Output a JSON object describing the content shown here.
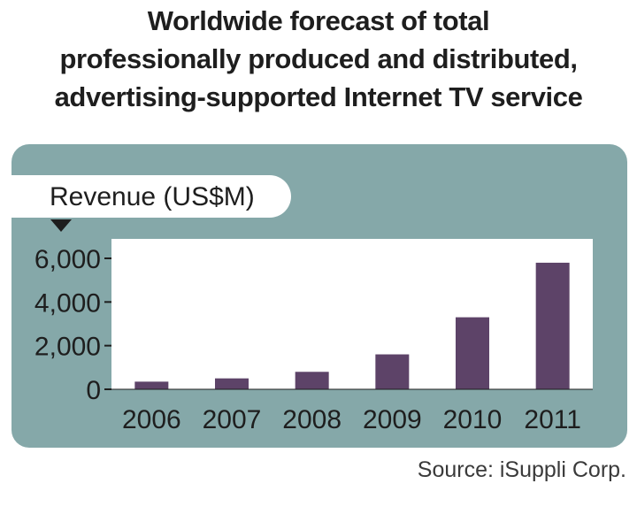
{
  "title_lines": [
    "Worldwide forecast of total",
    "professionally produced and distributed,",
    "advertising-supported Internet TV service"
  ],
  "source": "Source:  iSuppli Corp.",
  "colors": {
    "bar": "#5d4368",
    "panel": "#85a8a9",
    "text": "#1e1e1e"
  },
  "chart_data": {
    "type": "bar",
    "title": "Worldwide forecast of total professionally produced and distributed, advertising-supported Internet TV service",
    "ylabel": "Revenue (US$M)",
    "xlabel": "",
    "categories": [
      "2006",
      "2007",
      "2008",
      "2009",
      "2010",
      "2011"
    ],
    "values": [
      350,
      500,
      800,
      1600,
      3300,
      5800
    ],
    "ylim": [
      0,
      7000
    ],
    "yticks": [
      0,
      2000,
      4000,
      6000
    ],
    "ytick_labels": [
      "0",
      "2,000",
      "4,000",
      "6,000"
    ],
    "grid": false
  }
}
